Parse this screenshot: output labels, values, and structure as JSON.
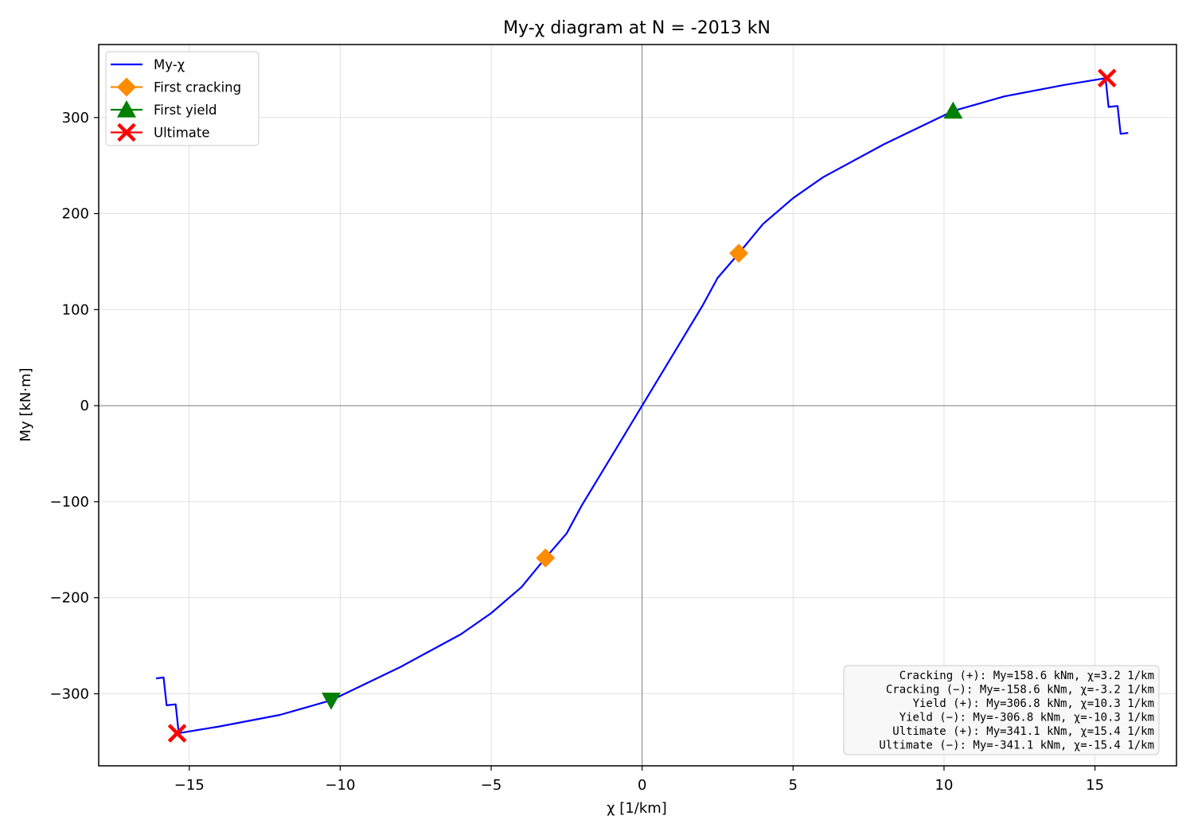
{
  "chart_data": {
    "type": "line",
    "title": "My-χ diagram at N = -2013 kN",
    "xlabel": "χ [1/km]",
    "ylabel": "My [kN·m]",
    "xlim": [
      -18,
      17.7
    ],
    "ylim": [
      -375,
      376
    ],
    "xticks": [
      -15,
      -10,
      -5,
      0,
      5,
      10,
      15
    ],
    "xtick_labels": [
      "−15",
      "−10",
      "−5",
      "0",
      "5",
      "10",
      "15"
    ],
    "yticks": [
      -300,
      -200,
      -100,
      0,
      100,
      200,
      300
    ],
    "ytick_labels": [
      "−300",
      "−200",
      "−100",
      "0",
      "100",
      "200",
      "300"
    ],
    "grid": true,
    "legend_position": "top-left",
    "series": [
      {
        "name": "My-χ",
        "color": "#0000ff",
        "points": [
          [
            -16.1,
            -284
          ],
          [
            -15.85,
            -283
          ],
          [
            -15.75,
            -312
          ],
          [
            -15.45,
            -311
          ],
          [
            -15.35,
            -341
          ],
          [
            -14,
            -334
          ],
          [
            -12,
            -322
          ],
          [
            -10.3,
            -306.8
          ],
          [
            -8,
            -272
          ],
          [
            -6,
            -238
          ],
          [
            -5,
            -216
          ],
          [
            -4,
            -189
          ],
          [
            -3.2,
            -158.6
          ],
          [
            -2.5,
            -133
          ],
          [
            -2,
            -104
          ],
          [
            -1,
            -52
          ],
          [
            0,
            0
          ],
          [
            1,
            52
          ],
          [
            2,
            104
          ],
          [
            2.5,
            133
          ],
          [
            3.2,
            158.6
          ],
          [
            4,
            189
          ],
          [
            5,
            216
          ],
          [
            6,
            238
          ],
          [
            8,
            272
          ],
          [
            10.3,
            306.8
          ],
          [
            12,
            322
          ],
          [
            14,
            334
          ],
          [
            15.35,
            341
          ],
          [
            15.45,
            311
          ],
          [
            15.75,
            312
          ],
          [
            15.85,
            283
          ],
          [
            16.1,
            284
          ]
        ]
      },
      {
        "name": "First cracking",
        "color": "#ff8c00",
        "marker": "diamond",
        "points": [
          [
            3.2,
            158.6
          ],
          [
            -3.2,
            -158.6
          ]
        ]
      },
      {
        "name": "First yield",
        "color": "#008000",
        "marker": "triangle",
        "points": [
          [
            10.3,
            306.8
          ],
          [
            -10.3,
            -306.8
          ]
        ]
      },
      {
        "name": "Ultimate",
        "color": "#ff0000",
        "marker": "x",
        "points": [
          [
            15.4,
            341.1
          ],
          [
            -15.4,
            -341.1
          ]
        ]
      }
    ],
    "annotation_lines": [
      "Cracking (+): My=158.6 kNm, χ=3.2 1/km",
      "Cracking (−): My=-158.6 kNm, χ=-3.2 1/km",
      "Yield (+): My=306.8 kNm, χ=10.3 1/km",
      "Yield (−): My=-306.8 kNm, χ=-10.3 1/km",
      "Ultimate (+): My=341.1 kNm, χ=15.4 1/km",
      "Ultimate (−): My=-341.1 kNm, χ=-15.4 1/km"
    ]
  }
}
